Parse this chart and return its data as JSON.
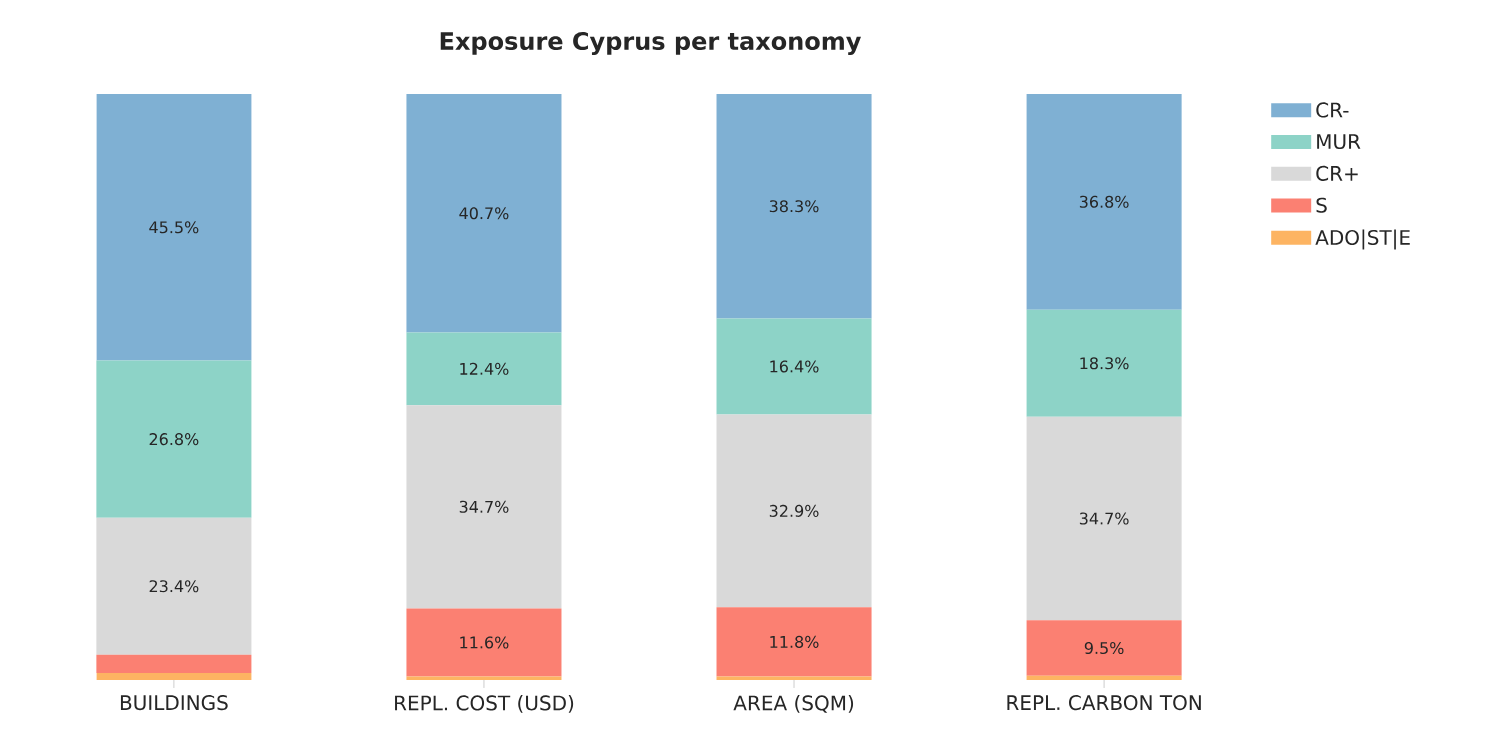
{
  "chart_data": {
    "type": "bar",
    "title": "Exposure Cyprus per taxonomy",
    "stacked": true,
    "legend": "top right",
    "categories": [
      "BUILDINGS",
      "REPL. COST (USD)",
      "AREA (SQM)",
      "REPL. CARBON TON"
    ],
    "series": [
      {
        "name": "ADO|ST|E",
        "color": "#fdb462",
        "values": [
          1.2,
          0.6,
          0.6,
          0.7
        ],
        "value_labels": [
          null,
          null,
          null,
          null
        ]
      },
      {
        "name": "S",
        "color": "#fb8072",
        "values": [
          3.1,
          11.6,
          11.8,
          9.5
        ],
        "value_labels": [
          null,
          "11.6%",
          "11.8%",
          "9.5%"
        ]
      },
      {
        "name": "CR+",
        "color": "#d9d9d9",
        "values": [
          23.4,
          34.7,
          32.9,
          34.7
        ],
        "value_labels": [
          "23.4%",
          "34.7%",
          "32.9%",
          "34.7%"
        ]
      },
      {
        "name": "MUR",
        "color": "#8dd3c7",
        "values": [
          26.8,
          12.4,
          16.4,
          18.3
        ],
        "value_labels": [
          "26.8%",
          "12.4%",
          "16.4%",
          "18.3%"
        ]
      },
      {
        "name": "CR-",
        "color": "#7fb0d3",
        "values": [
          45.5,
          40.7,
          38.3,
          36.8
        ],
        "value_labels": [
          "45.5%",
          "40.7%",
          "38.3%",
          "36.8%"
        ]
      }
    ]
  }
}
